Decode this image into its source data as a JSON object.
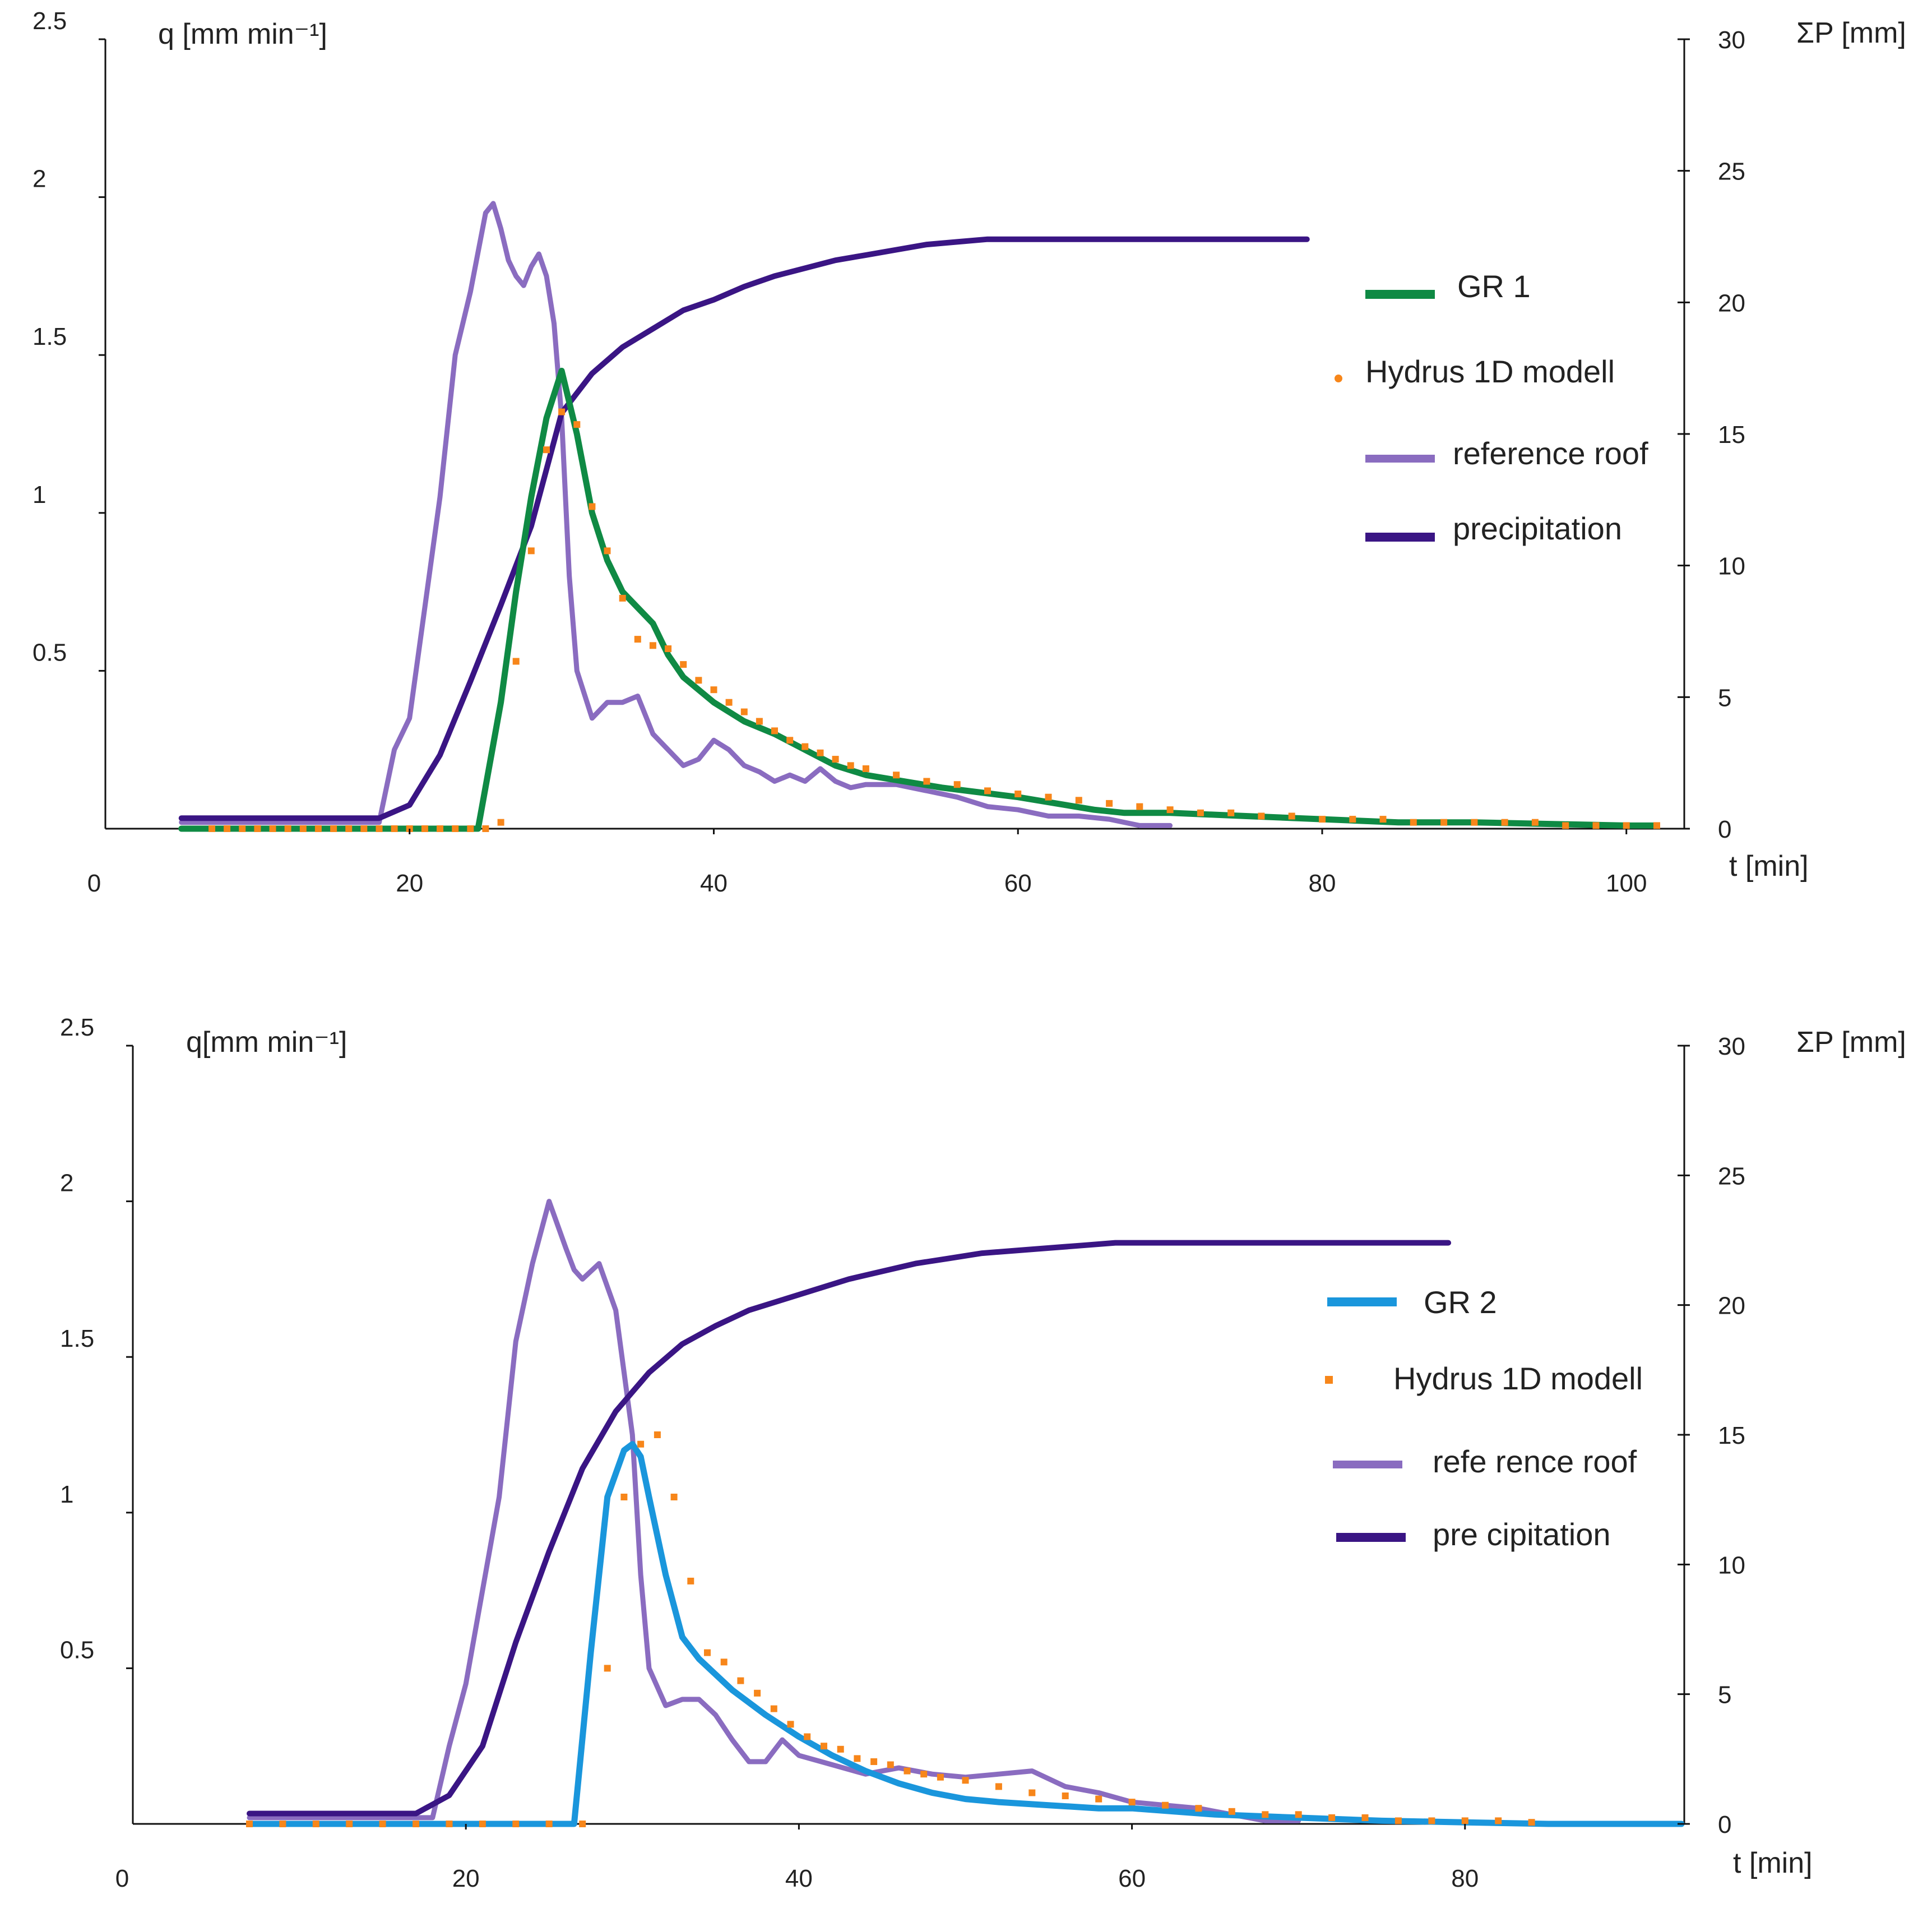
{
  "colors": {
    "gr1": "#0f8a44",
    "gr2": "#1a96dc",
    "hydrus": "#f7861a",
    "reference": "#8a6cc0",
    "precipitation": "#3a1584",
    "axis": "#111111"
  },
  "chart_data": [
    {
      "type": "line",
      "panel": "top",
      "title": "",
      "ylabel_left": "q [mm min⁻¹]",
      "ylabel_right": "ΣP [mm]",
      "xlabel": "t [min]",
      "xlim": [
        0,
        102
      ],
      "ylim_left": [
        0,
        2.5
      ],
      "ylim_right": [
        0,
        30
      ],
      "x_ticks": [
        0,
        20,
        40,
        60,
        80,
        100
      ],
      "y_ticks_left": [
        0.5,
        1,
        1.5,
        2,
        2.5
      ],
      "y_ticks_right": [
        0,
        5,
        10,
        15,
        20,
        25,
        30
      ],
      "legend_position": "right",
      "series": [
        {
          "name": "GR 1",
          "axis": "left",
          "style": "line",
          "color": "#0f8a44",
          "x": [
            5,
            24.5,
            26,
            27,
            28,
            29,
            30,
            31,
            32,
            33,
            34,
            35,
            36,
            37,
            38,
            40,
            42,
            44,
            46,
            48,
            50,
            55,
            60,
            65,
            67,
            70,
            75,
            80,
            85,
            90,
            95,
            100,
            102
          ],
          "y": [
            0,
            0,
            0.4,
            0.75,
            1.05,
            1.3,
            1.45,
            1.25,
            1.0,
            0.85,
            0.75,
            0.7,
            0.65,
            0.55,
            0.48,
            0.4,
            0.34,
            0.3,
            0.25,
            0.2,
            0.17,
            0.13,
            0.1,
            0.06,
            0.05,
            0.05,
            0.04,
            0.03,
            0.02,
            0.02,
            0.015,
            0.01,
            0.01
          ]
        },
        {
          "name": "Hydrus  1D modell",
          "axis": "left",
          "style": "dots",
          "color": "#f7861a",
          "x": [
            7,
            8,
            9,
            10,
            11,
            12,
            13,
            14,
            15,
            16,
            17,
            18,
            19,
            20,
            21,
            22,
            23,
            24,
            25,
            26,
            27,
            28,
            29,
            30,
            31,
            32,
            33,
            34,
            35,
            36,
            37,
            38,
            39,
            40,
            41,
            42,
            43,
            44,
            45,
            46,
            47,
            48,
            49,
            50,
            52,
            54,
            56,
            58,
            60,
            62,
            64,
            66,
            68,
            70,
            72,
            74,
            76,
            78,
            80,
            82,
            84,
            86,
            88,
            90,
            92,
            94,
            96,
            98,
            100,
            102
          ],
          "y": [
            0,
            0,
            0,
            0,
            0,
            0,
            0,
            0,
            0,
            0,
            0,
            0,
            0,
            0,
            0,
            0,
            0,
            0,
            0,
            0.02,
            0.53,
            0.88,
            1.2,
            1.32,
            1.28,
            1.02,
            0.88,
            0.73,
            0.6,
            0.58,
            0.57,
            0.52,
            0.47,
            0.44,
            0.4,
            0.37,
            0.34,
            0.31,
            0.28,
            0.26,
            0.24,
            0.22,
            0.2,
            0.19,
            0.17,
            0.15,
            0.14,
            0.12,
            0.11,
            0.1,
            0.09,
            0.08,
            0.07,
            0.06,
            0.05,
            0.05,
            0.04,
            0.04,
            0.03,
            0.03,
            0.03,
            0.02,
            0.02,
            0.02,
            0.02,
            0.02,
            0.01,
            0.01,
            0.01,
            0.01
          ]
        },
        {
          "name": "reference roof",
          "axis": "left",
          "style": "line",
          "color": "#8a6cc0",
          "x": [
            5,
            18,
            19,
            20,
            21,
            22,
            23,
            24,
            25,
            25.5,
            26,
            26.5,
            27,
            27.5,
            28,
            28.5,
            29,
            29.5,
            30,
            30.5,
            31,
            32,
            33,
            34,
            35,
            36,
            37,
            38,
            39,
            40,
            41,
            42,
            43,
            44,
            45,
            46,
            47,
            48,
            49,
            50,
            52,
            54,
            56,
            58,
            60,
            62,
            64,
            66,
            68,
            70
          ],
          "y": [
            0.02,
            0.02,
            0.25,
            0.35,
            0.7,
            1.05,
            1.5,
            1.7,
            1.95,
            1.98,
            1.9,
            1.8,
            1.75,
            1.72,
            1.78,
            1.82,
            1.75,
            1.6,
            1.3,
            0.8,
            0.5,
            0.35,
            0.4,
            0.4,
            0.42,
            0.3,
            0.25,
            0.2,
            0.22,
            0.28,
            0.25,
            0.2,
            0.18,
            0.15,
            0.17,
            0.15,
            0.19,
            0.15,
            0.13,
            0.14,
            0.14,
            0.12,
            0.1,
            0.07,
            0.06,
            0.04,
            0.04,
            0.03,
            0.01,
            0.01
          ]
        },
        {
          "name": "precipitation",
          "axis": "right",
          "style": "line",
          "color": "#3a1584",
          "x": [
            5,
            18,
            20,
            22,
            24,
            26,
            28,
            30,
            32,
            34,
            36,
            38,
            40,
            42,
            44,
            46,
            48,
            50,
            52,
            54,
            56,
            58,
            60,
            65,
            70,
            75,
            79
          ],
          "y": [
            0.4,
            0.4,
            0.9,
            2.8,
            5.6,
            8.5,
            11.5,
            15.8,
            17.3,
            18.3,
            19.0,
            19.7,
            20.1,
            20.6,
            21.0,
            21.3,
            21.6,
            21.8,
            22.0,
            22.2,
            22.3,
            22.4,
            22.4,
            22.4,
            22.4,
            22.4,
            22.4
          ]
        }
      ]
    },
    {
      "type": "line",
      "panel": "bottom",
      "title": "",
      "ylabel_left": "q[mm min⁻¹]",
      "ylabel_right": "ΣP [mm]",
      "xlabel": "t [min]",
      "xlim": [
        0,
        93
      ],
      "ylim_left": [
        0,
        2.5
      ],
      "ylim_right": [
        0,
        30
      ],
      "x_ticks": [
        0,
        20,
        40,
        60,
        80
      ],
      "y_ticks_left": [
        0.5,
        1,
        1.5,
        2,
        2.5
      ],
      "y_ticks_right": [
        0,
        5,
        10,
        15,
        20,
        25,
        30
      ],
      "legend_position": "right",
      "series": [
        {
          "name": "GR  2",
          "axis": "left",
          "style": "line",
          "color": "#1a96dc",
          "x": [
            7,
            26.5,
            27.5,
            28.5,
            29.5,
            30,
            30.5,
            31,
            32,
            33,
            34,
            35,
            36,
            38,
            40,
            42,
            44,
            46,
            48,
            50,
            52,
            55,
            58,
            60,
            65,
            70,
            75,
            80,
            85,
            90,
            93
          ],
          "y": [
            0,
            0,
            0.55,
            1.05,
            1.2,
            1.22,
            1.18,
            1.05,
            0.8,
            0.6,
            0.53,
            0.48,
            0.43,
            0.35,
            0.28,
            0.22,
            0.17,
            0.13,
            0.1,
            0.08,
            0.07,
            0.06,
            0.05,
            0.05,
            0.03,
            0.02,
            0.01,
            0.005,
            0,
            0,
            0
          ]
        },
        {
          "name": "Hydrus 1D modell",
          "axis": "left",
          "style": "dots",
          "color": "#f7861a",
          "x": [
            7,
            9,
            11,
            13,
            15,
            17,
            19,
            21,
            23,
            25,
            27,
            28.5,
            29.5,
            30.5,
            31.5,
            32.5,
            33.5,
            34.5,
            35.5,
            36.5,
            37.5,
            38.5,
            39.5,
            40.5,
            41.5,
            42.5,
            43.5,
            44.5,
            45.5,
            46.5,
            47.5,
            48.5,
            50,
            52,
            54,
            56,
            58,
            60,
            62,
            64,
            66,
            68,
            70,
            72,
            74,
            76,
            78,
            80,
            82,
            84
          ],
          "y": [
            0,
            0,
            0,
            0,
            0,
            0,
            0,
            0,
            0,
            0,
            0,
            0.5,
            1.05,
            1.22,
            1.25,
            1.05,
            0.78,
            0.55,
            0.52,
            0.46,
            0.42,
            0.37,
            0.32,
            0.28,
            0.25,
            0.24,
            0.21,
            0.2,
            0.19,
            0.17,
            0.16,
            0.15,
            0.14,
            0.12,
            0.1,
            0.09,
            0.08,
            0.07,
            0.06,
            0.05,
            0.04,
            0.03,
            0.03,
            0.02,
            0.02,
            0.01,
            0.01,
            0.01,
            0.01,
            0.005
          ]
        },
        {
          "name": "refe rence roof",
          "axis": "left",
          "style": "line",
          "color": "#8a6cc0",
          "x": [
            7,
            18,
            19,
            20,
            21,
            22,
            23,
            24,
            25,
            26,
            26.5,
            27,
            28,
            29,
            30,
            30.5,
            31,
            32,
            33,
            34,
            35,
            36,
            37,
            38,
            39,
            40,
            42,
            44,
            46,
            48,
            50,
            52,
            54,
            56,
            58,
            60,
            62,
            64,
            66,
            68,
            70
          ],
          "y": [
            0.02,
            0.02,
            0.25,
            0.45,
            0.75,
            1.05,
            1.55,
            1.8,
            2.0,
            1.85,
            1.78,
            1.75,
            1.8,
            1.65,
            1.25,
            0.8,
            0.5,
            0.38,
            0.4,
            0.4,
            0.35,
            0.27,
            0.2,
            0.2,
            0.27,
            0.22,
            0.19,
            0.16,
            0.18,
            0.16,
            0.15,
            0.16,
            0.17,
            0.12,
            0.1,
            0.07,
            0.06,
            0.05,
            0.03,
            0.01,
            0.01
          ]
        },
        {
          "name": "pre cipitation",
          "axis": "right",
          "style": "line",
          "color": "#3a1584",
          "x": [
            7,
            17,
            19,
            21,
            23,
            25,
            27,
            29,
            31,
            33,
            35,
            37,
            39,
            41,
            43,
            45,
            47,
            49,
            51,
            53,
            55,
            57,
            59,
            63,
            67,
            71,
            75,
            79
          ],
          "y": [
            0.4,
            0.4,
            1.1,
            3.0,
            7.0,
            10.5,
            13.7,
            15.9,
            17.4,
            18.5,
            19.2,
            19.8,
            20.2,
            20.6,
            21.0,
            21.3,
            21.6,
            21.8,
            22.0,
            22.1,
            22.2,
            22.3,
            22.4,
            22.4,
            22.4,
            22.4,
            22.4,
            22.4
          ]
        }
      ]
    }
  ]
}
